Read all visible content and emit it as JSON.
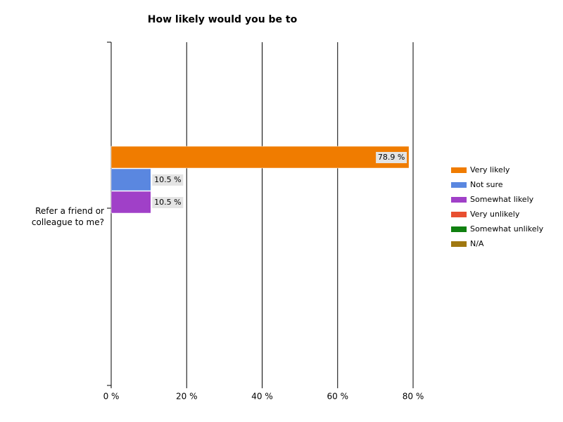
{
  "chart_data": {
    "type": "bar",
    "orientation": "horizontal",
    "title": "How likely would you be to",
    "categories": [
      "Refer a friend or colleague to me?"
    ],
    "series": [
      {
        "name": "Very likely",
        "color": "#f07c00",
        "values": [
          78.9
        ],
        "value_labels": [
          "78.9 %"
        ]
      },
      {
        "name": "Not sure",
        "color": "#5a87e0",
        "values": [
          10.5
        ],
        "value_labels": [
          "10.5 %"
        ]
      },
      {
        "name": "Somewhat likely",
        "color": "#a040c8",
        "values": [
          10.5
        ],
        "value_labels": [
          "10.5 %"
        ]
      },
      {
        "name": "Very unlikely",
        "color": "#e84f30",
        "values": [
          0
        ]
      },
      {
        "name": "Somewhat unlikely",
        "color": "#108010",
        "values": [
          0
        ]
      },
      {
        "name": "N/A",
        "color": "#a07810",
        "values": [
          0
        ]
      }
    ],
    "xlim": [
      0,
      80
    ],
    "xticks": [
      {
        "value": 0,
        "label": "0 %"
      },
      {
        "value": 20,
        "label": "20 %"
      },
      {
        "value": 40,
        "label": "40 %"
      },
      {
        "value": 60,
        "label": "60 %"
      },
      {
        "value": 80,
        "label": "80 %"
      }
    ],
    "grid": true,
    "legend": "right"
  }
}
